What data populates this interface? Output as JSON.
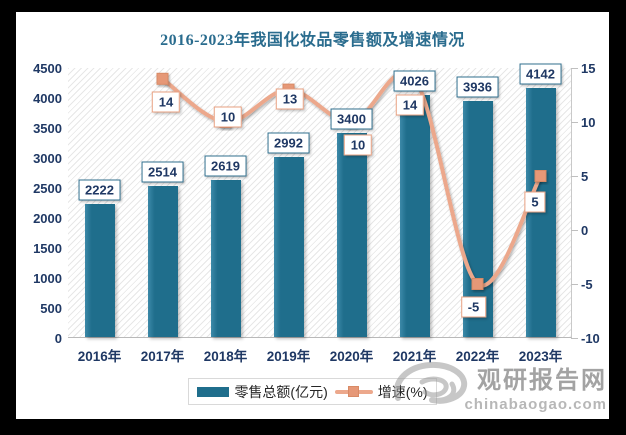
{
  "title": "2016-2023年我国化妆品零售额及增速情况",
  "chart_data": {
    "type": "combo-bar-line",
    "categories": [
      "2016年",
      "2017年",
      "2018年",
      "2019年",
      "2020年",
      "2021年",
      "2022年",
      "2023年"
    ],
    "series": [
      {
        "name": "零售总额(亿元)",
        "type": "bar",
        "axis": "left",
        "values": [
          2222,
          2514,
          2619,
          2992,
          3400,
          4026,
          3936,
          4142
        ]
      },
      {
        "name": "增速(%)",
        "type": "line",
        "axis": "right",
        "values": [
          null,
          14,
          10,
          13,
          10,
          14,
          -5,
          5
        ]
      }
    ],
    "left_axis": {
      "min": 0,
      "max": 4500,
      "step": 500,
      "ticks": [
        "4500",
        "4000",
        "3500",
        "3000",
        "2500",
        "2000",
        "1500",
        "1000",
        "500",
        "0"
      ]
    },
    "right_axis": {
      "min": -10,
      "max": 15,
      "step": 5,
      "ticks": [
        "15",
        "10",
        "5",
        "0",
        "-5",
        "-10"
      ]
    },
    "grid": false,
    "legend_position": "bottom",
    "plot_background": "diagonal-hatch"
  },
  "watermark": {
    "brand": "观研报告网",
    "domain": "chinabaogao.com"
  },
  "colors": {
    "bar": "#1f6e8c",
    "bar_highlight": "#3c89a8",
    "line": "#eca88c",
    "marker_fill": "#e69877",
    "marker_stroke": "#d88a66",
    "title_text": "#2a6c8e",
    "axis_text": "#1f3864",
    "label_text": "#1f3864",
    "bar_label_border": "#31708f",
    "line_label_border": "#e8a182",
    "frame": "#000000"
  }
}
